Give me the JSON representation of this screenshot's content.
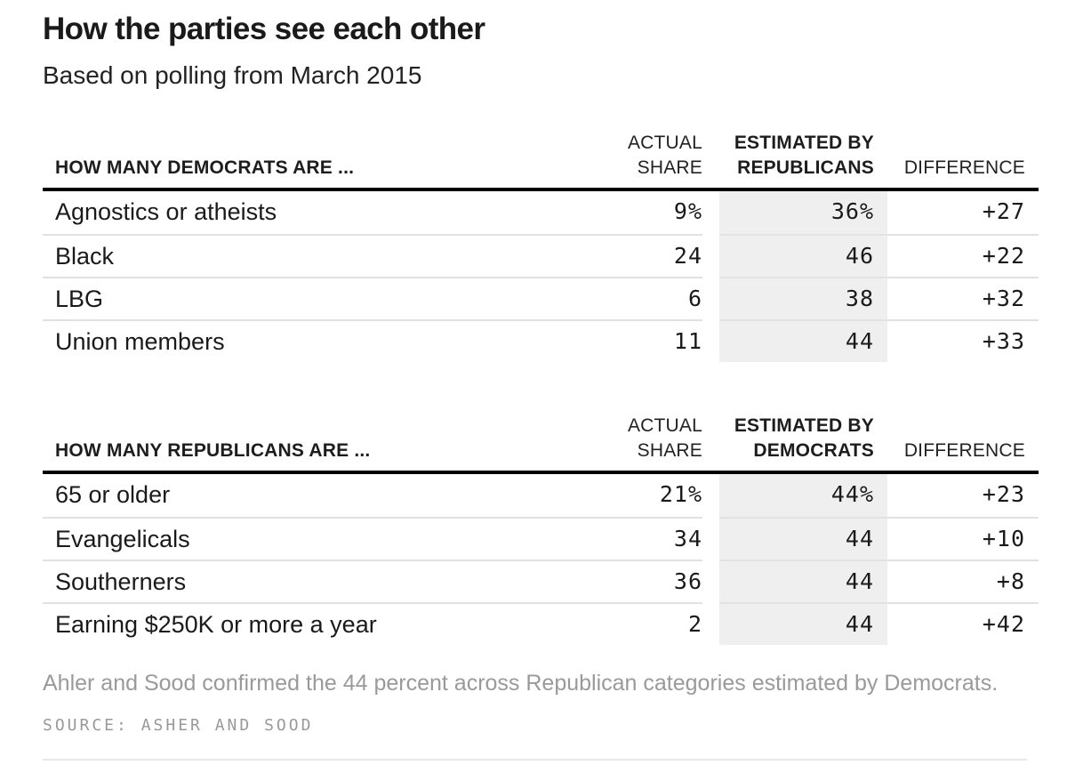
{
  "header": {
    "title": "How the parties see each other",
    "subtitle": "Based on polling from March 2015"
  },
  "tables": [
    {
      "row_header": "HOW MANY DEMOCRATS ARE ...",
      "col_actual_line1": "ACTUAL",
      "col_actual_line2": "SHARE",
      "col_estimated_line1": "ESTIMATED BY",
      "col_estimated_line2": "REPUBLICANS",
      "col_difference": "DIFFERENCE",
      "rows": [
        {
          "label": "Agnostics or atheists",
          "actual": "9%",
          "estimated": "36%",
          "difference": "+27"
        },
        {
          "label": "Black",
          "actual": "24",
          "estimated": "46",
          "difference": "+22"
        },
        {
          "label": "LBG",
          "actual": "6",
          "estimated": "38",
          "difference": "+32"
        },
        {
          "label": "Union members",
          "actual": "11",
          "estimated": "44",
          "difference": "+33"
        }
      ]
    },
    {
      "row_header": "HOW MANY REPUBLICANS ARE ...",
      "col_actual_line1": "ACTUAL",
      "col_actual_line2": "SHARE",
      "col_estimated_line1": "ESTIMATED BY",
      "col_estimated_line2": "DEMOCRATS",
      "col_difference": "DIFFERENCE",
      "rows": [
        {
          "label": "65 or older",
          "actual": "21%",
          "estimated": "44%",
          "difference": "+23"
        },
        {
          "label": "Evangelicals",
          "actual": "34",
          "estimated": "44",
          "difference": "+10"
        },
        {
          "label": "Southerners",
          "actual": "36",
          "estimated": "44",
          "difference": "+8"
        },
        {
          "label": "Earning $250K or more a year",
          "actual": "2",
          "estimated": "44",
          "difference": "+42"
        }
      ]
    }
  ],
  "footer": {
    "note": "Ahler and Sood confirmed the 44 percent across Republican categories estimated by Democrats.",
    "source": "SOURCE: ASHER AND SOOD"
  },
  "colors": {
    "text_dark": "#1a1a1a",
    "highlight_column_bg": "#efefef",
    "header_rule": "#000000",
    "row_separator": "#e2e2e2",
    "muted_gray": "#9a9a9a",
    "bottom_divider": "#e9e9e9"
  },
  "chart_data": [
    {
      "type": "table",
      "title": "How the parties see each other",
      "subtitle": "Based on polling from March 2015",
      "section": "HOW MANY DEMOCRATS ARE ...",
      "columns": [
        "ACTUAL SHARE",
        "ESTIMATED BY REPUBLICANS",
        "DIFFERENCE"
      ],
      "highlighted_column": "ESTIMATED BY REPUBLICANS",
      "rows": [
        {
          "category": "Agnostics or atheists",
          "actual_share": 9,
          "estimated_by_republicans": 36,
          "difference": 27
        },
        {
          "category": "Black",
          "actual_share": 24,
          "estimated_by_republicans": 46,
          "difference": 22
        },
        {
          "category": "LBG",
          "actual_share": 6,
          "estimated_by_republicans": 38,
          "difference": 32
        },
        {
          "category": "Union members",
          "actual_share": 11,
          "estimated_by_republicans": 44,
          "difference": 33
        }
      ]
    },
    {
      "type": "table",
      "section": "HOW MANY REPUBLICANS ARE ...",
      "columns": [
        "ACTUAL SHARE",
        "ESTIMATED BY DEMOCRATS",
        "DIFFERENCE"
      ],
      "highlighted_column": "ESTIMATED BY DEMOCRATS",
      "rows": [
        {
          "category": "65 or older",
          "actual_share": 21,
          "estimated_by_democrats": 44,
          "difference": 23
        },
        {
          "category": "Evangelicals",
          "actual_share": 34,
          "estimated_by_democrats": 44,
          "difference": 10
        },
        {
          "category": "Southerners",
          "actual_share": 36,
          "estimated_by_democrats": 44,
          "difference": 8
        },
        {
          "category": "Earning $250K or more a year",
          "actual_share": 2,
          "estimated_by_democrats": 44,
          "difference": 42
        }
      ]
    }
  ]
}
